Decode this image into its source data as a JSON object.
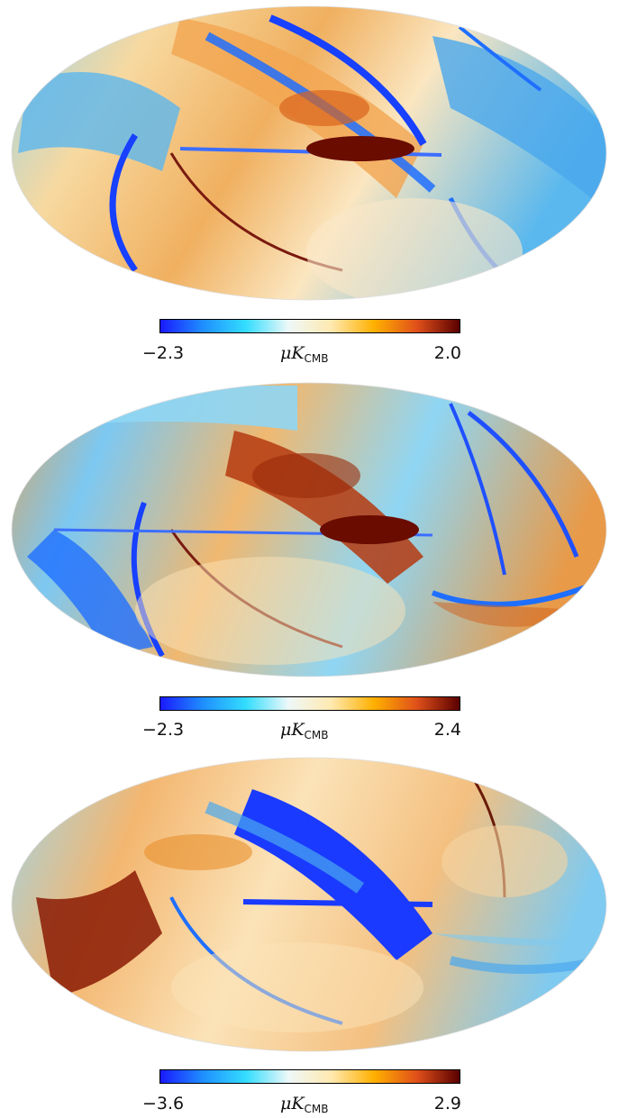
{
  "panels": [
    {
      "colorbar": {
        "min_label": "−2.3",
        "max_label": "2.0",
        "unit_prefix": "μK",
        "unit_sub": "CMB"
      },
      "palette": "blue-to-red",
      "band_sign": "positive"
    },
    {
      "colorbar": {
        "min_label": "−2.3",
        "max_label": "2.4",
        "unit_prefix": "μK",
        "unit_sub": "CMB"
      },
      "palette": "blue-to-red",
      "band_sign": "positive"
    },
    {
      "colorbar": {
        "min_label": "−3.6",
        "max_label": "2.9",
        "unit_prefix": "μK",
        "unit_sub": "CMB"
      },
      "palette": "blue-to-red",
      "band_sign": "negative"
    }
  ],
  "colors": {
    "colormap": [
      "#1a1aff",
      "#1f8fff",
      "#33ddff",
      "#eef8f8",
      "#ffe9b0",
      "#ffb000",
      "#e0501a",
      "#5a0000"
    ]
  }
}
